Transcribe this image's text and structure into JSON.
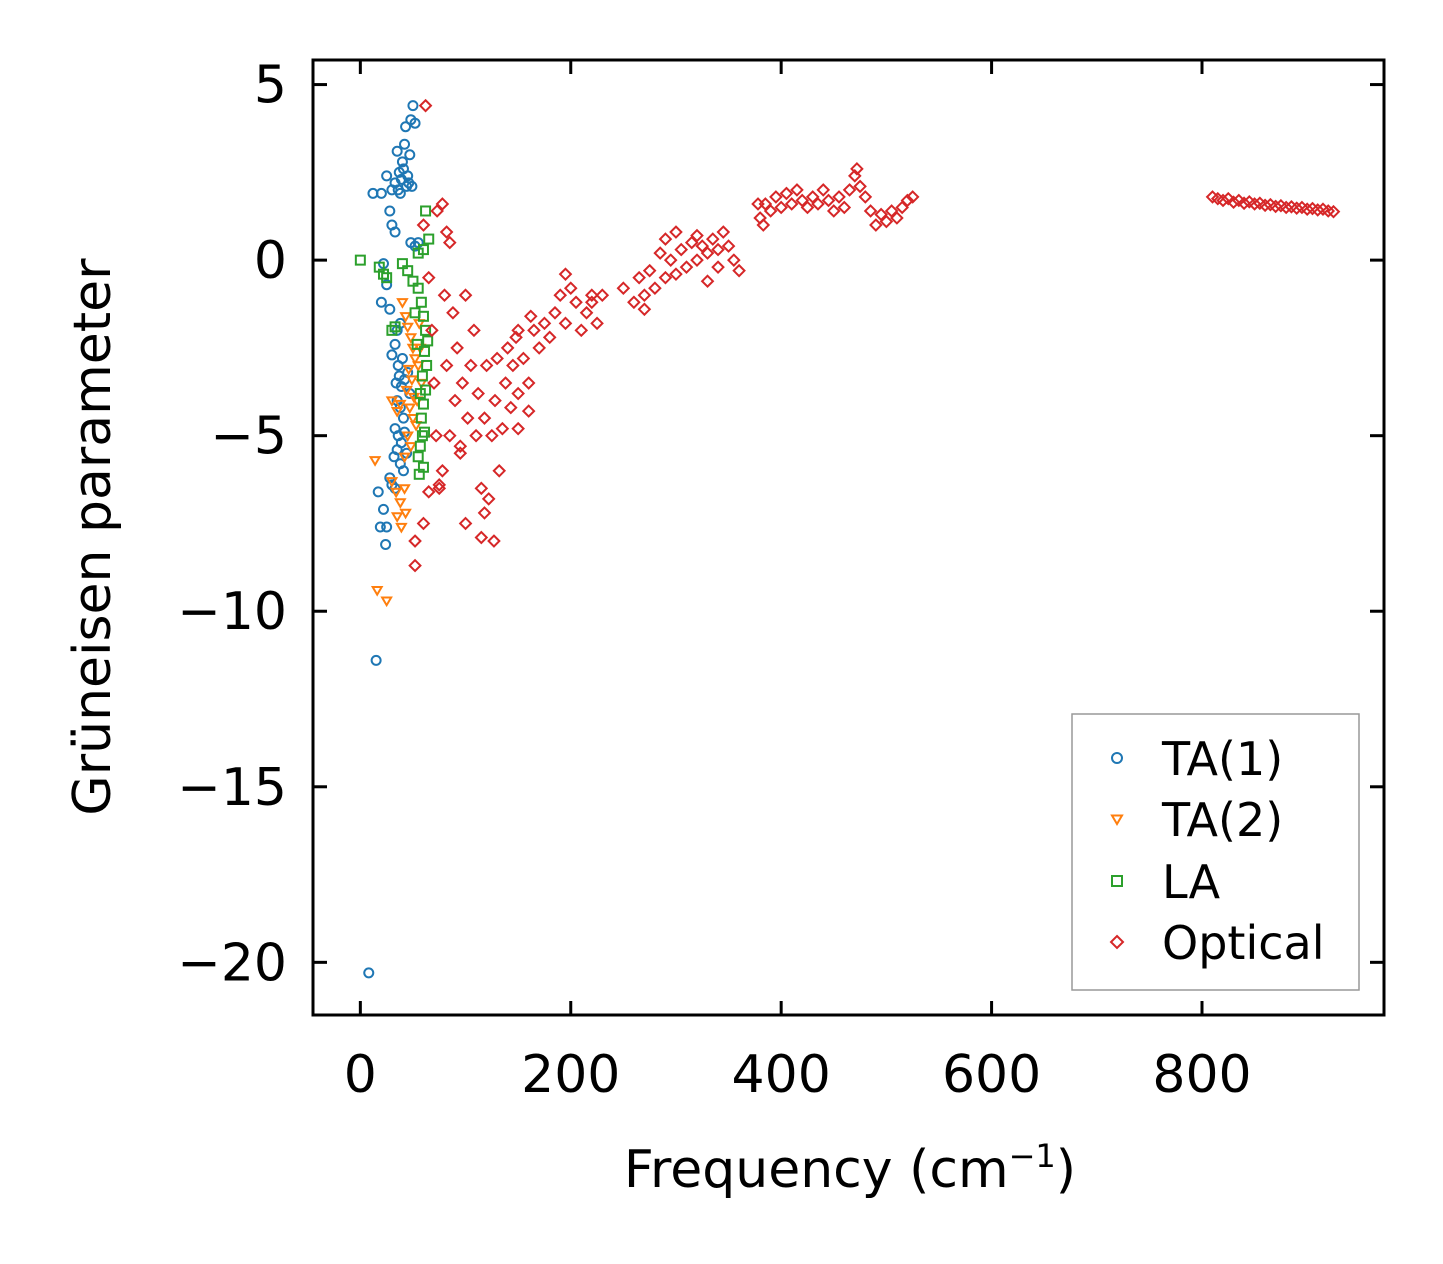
{
  "chart_data": {
    "type": "scatter",
    "xlabel": "Frequency (cm",
    "xlabel_sup": "−1",
    "xlabel_suffix": ")",
    "ylabel": "Grüneisen parameter",
    "xlim": [
      -45,
      973
    ],
    "ylim": [
      -21.5,
      5.7
    ],
    "xticks": [
      0,
      200,
      400,
      600,
      800
    ],
    "xtick_labels": [
      "0",
      "200",
      "400",
      "600",
      "800"
    ],
    "yticks": [
      5,
      0,
      -5,
      -10,
      -15,
      -20
    ],
    "ytick_labels": [
      "5",
      "0",
      "−5",
      "−10",
      "−15",
      "−20"
    ],
    "grid": false,
    "legend_position": "bottom-right",
    "series": [
      {
        "name": "TA(1)",
        "marker": "circle",
        "color": "#1f77b4",
        "points": [
          [
            12,
            1.9
          ],
          [
            20,
            1.9
          ],
          [
            25,
            2.4
          ],
          [
            28,
            1.4
          ],
          [
            30,
            2.0
          ],
          [
            33,
            2.2
          ],
          [
            35,
            3.1
          ],
          [
            37,
            2.5
          ],
          [
            38,
            1.9
          ],
          [
            40,
            2.8
          ],
          [
            42,
            3.3
          ],
          [
            43,
            3.8
          ],
          [
            44,
            2.1
          ],
          [
            46,
            2.2
          ],
          [
            47,
            3.0
          ],
          [
            48,
            4.0
          ],
          [
            50,
            4.4
          ],
          [
            52,
            3.9
          ],
          [
            45,
            2.4
          ],
          [
            41,
            2.6
          ],
          [
            36,
            2.0
          ],
          [
            39,
            2.3
          ],
          [
            49,
            2.1
          ],
          [
            30,
            1.0
          ],
          [
            33,
            0.8
          ],
          [
            48,
            0.5
          ],
          [
            52,
            0.4
          ],
          [
            55,
            0.5
          ],
          [
            22,
            -0.1
          ],
          [
            25,
            -0.7
          ],
          [
            20,
            -1.2
          ],
          [
            28,
            -1.4
          ],
          [
            35,
            -2.0
          ],
          [
            38,
            -1.8
          ],
          [
            33,
            -2.4
          ],
          [
            30,
            -2.7
          ],
          [
            36,
            -3.0
          ],
          [
            40,
            -2.8
          ],
          [
            34,
            -3.5
          ],
          [
            37,
            -3.3
          ],
          [
            39,
            -3.6
          ],
          [
            42,
            -3.4
          ],
          [
            45,
            -3.2
          ],
          [
            47,
            -3.8
          ],
          [
            35,
            -4.0
          ],
          [
            38,
            -4.2
          ],
          [
            41,
            -4.5
          ],
          [
            33,
            -4.8
          ],
          [
            36,
            -5.0
          ],
          [
            39,
            -5.2
          ],
          [
            42,
            -4.9
          ],
          [
            44,
            -5.5
          ],
          [
            32,
            -5.6
          ],
          [
            35,
            -5.4
          ],
          [
            38,
            -5.8
          ],
          [
            41,
            -6.0
          ],
          [
            30,
            -6.4
          ],
          [
            28,
            -6.2
          ],
          [
            33,
            -6.5
          ],
          [
            17,
            -6.6
          ],
          [
            22,
            -7.1
          ],
          [
            19,
            -7.6
          ],
          [
            25,
            -7.6
          ],
          [
            24,
            -8.1
          ],
          [
            15,
            -11.4
          ],
          [
            8,
            -20.3
          ]
        ]
      },
      {
        "name": "TA(2)",
        "marker": "triangle",
        "color": "#ff7f0e",
        "points": [
          [
            40,
            -1.2
          ],
          [
            43,
            -1.6
          ],
          [
            45,
            -1.9
          ],
          [
            48,
            -2.2
          ],
          [
            50,
            -2.5
          ],
          [
            52,
            -2.8
          ],
          [
            46,
            -3.1
          ],
          [
            49,
            -3.4
          ],
          [
            44,
            -3.7
          ],
          [
            51,
            -3.9
          ],
          [
            47,
            -4.2
          ],
          [
            50,
            -4.5
          ],
          [
            53,
            -4.7
          ],
          [
            45,
            -5.0
          ],
          [
            48,
            -5.3
          ],
          [
            42,
            -5.6
          ],
          [
            38,
            -4.1
          ],
          [
            35,
            -4.3
          ],
          [
            30,
            -4.0
          ],
          [
            55,
            -3.0
          ],
          [
            57,
            -2.5
          ],
          [
            56,
            -1.8
          ],
          [
            58,
            -3.5
          ],
          [
            54,
            -4.0
          ],
          [
            14,
            -5.7
          ],
          [
            30,
            -6.3
          ],
          [
            34,
            -6.6
          ],
          [
            38,
            -6.9
          ],
          [
            42,
            -6.5
          ],
          [
            35,
            -7.3
          ],
          [
            39,
            -7.6
          ],
          [
            43,
            -7.2
          ],
          [
            16,
            -9.4
          ],
          [
            25,
            -9.7
          ]
        ]
      },
      {
        "name": "LA",
        "marker": "square",
        "color": "#2ca02c",
        "points": [
          [
            0,
            0.0
          ],
          [
            18,
            -0.2
          ],
          [
            22,
            -0.4
          ],
          [
            25,
            -0.5
          ],
          [
            40,
            -0.1
          ],
          [
            45,
            -0.3
          ],
          [
            50,
            -0.6
          ],
          [
            55,
            -0.8
          ],
          [
            58,
            -1.2
          ],
          [
            60,
            -1.6
          ],
          [
            62,
            -2.0
          ],
          [
            64,
            -2.3
          ],
          [
            30,
            -2.0
          ],
          [
            33,
            -1.9
          ],
          [
            61,
            -2.6
          ],
          [
            63,
            -3.0
          ],
          [
            59,
            -3.3
          ],
          [
            62,
            -3.7
          ],
          [
            60,
            -4.1
          ],
          [
            58,
            -4.5
          ],
          [
            61,
            -4.9
          ],
          [
            57,
            -5.3
          ],
          [
            55,
            -5.6
          ],
          [
            60,
            -5.9
          ],
          [
            56,
            -6.1
          ],
          [
            62,
            1.4
          ],
          [
            65,
            0.6
          ],
          [
            60,
            0.3
          ],
          [
            55,
            0.2
          ],
          [
            52,
            -1.5
          ],
          [
            54,
            -2.4
          ],
          [
            57,
            -3.8
          ],
          [
            59,
            -5.0
          ]
        ]
      },
      {
        "name": "Optical",
        "marker": "diamond",
        "color": "#d62728",
        "points": [
          [
            62,
            4.4
          ],
          [
            472,
            2.6
          ],
          [
            60,
            1.0
          ],
          [
            65,
            -0.5
          ],
          [
            68,
            -2.0
          ],
          [
            70,
            -3.5
          ],
          [
            72,
            -5.0
          ],
          [
            75,
            -6.5
          ],
          [
            78,
            -6.0
          ],
          [
            80,
            -1.0
          ],
          [
            82,
            -3.0
          ],
          [
            85,
            0.5
          ],
          [
            88,
            -1.5
          ],
          [
            90,
            -4.0
          ],
          [
            92,
            -2.5
          ],
          [
            95,
            -5.5
          ],
          [
            97,
            -3.5
          ],
          [
            100,
            -1.0
          ],
          [
            102,
            -4.5
          ],
          [
            105,
            -3.0
          ],
          [
            108,
            -2.0
          ],
          [
            110,
            -5.0
          ],
          [
            112,
            -3.8
          ],
          [
            115,
            -6.5
          ],
          [
            118,
            -4.5
          ],
          [
            120,
            -3.0
          ],
          [
            122,
            -6.8
          ],
          [
            125,
            -5.0
          ],
          [
            128,
            -4.0
          ],
          [
            130,
            -2.8
          ],
          [
            132,
            -6.0
          ],
          [
            135,
            -4.8
          ],
          [
            138,
            -3.5
          ],
          [
            140,
            -2.5
          ],
          [
            143,
            -4.2
          ],
          [
            145,
            -3.0
          ],
          [
            148,
            -2.2
          ],
          [
            150,
            -3.8
          ],
          [
            155,
            -2.8
          ],
          [
            160,
            -3.5
          ],
          [
            165,
            -2.0
          ],
          [
            170,
            -2.5
          ],
          [
            175,
            -1.8
          ],
          [
            180,
            -2.2
          ],
          [
            185,
            -1.5
          ],
          [
            190,
            -1.0
          ],
          [
            195,
            -1.8
          ],
          [
            200,
            -0.8
          ],
          [
            205,
            -1.2
          ],
          [
            210,
            -2.0
          ],
          [
            215,
            -1.5
          ],
          [
            220,
            -1.2
          ],
          [
            225,
            -1.8
          ],
          [
            230,
            -1.0
          ],
          [
            78,
            1.6
          ],
          [
            73,
            1.4
          ],
          [
            82,
            0.8
          ],
          [
            60,
            -7.5
          ],
          [
            65,
            -6.6
          ],
          [
            75,
            -6.4
          ],
          [
            52,
            -8.0
          ],
          [
            52,
            -8.7
          ],
          [
            85,
            -5.0
          ],
          [
            95,
            -5.3
          ],
          [
            100,
            -7.5
          ],
          [
            115,
            -7.9
          ],
          [
            127,
            -8.0
          ],
          [
            118,
            -7.2
          ],
          [
            150,
            -4.8
          ],
          [
            160,
            -4.3
          ],
          [
            150,
            -2.0
          ],
          [
            162,
            -1.6
          ],
          [
            195,
            -0.4
          ],
          [
            220,
            -1.0
          ],
          [
            250,
            -0.8
          ],
          [
            260,
            -1.2
          ],
          [
            265,
            -0.5
          ],
          [
            270,
            -1.0
          ],
          [
            275,
            -0.3
          ],
          [
            280,
            -0.8
          ],
          [
            285,
            0.2
          ],
          [
            290,
            -0.5
          ],
          [
            295,
            0.0
          ],
          [
            300,
            -0.4
          ],
          [
            305,
            0.3
          ],
          [
            310,
            -0.2
          ],
          [
            315,
            0.5
          ],
          [
            320,
            0.0
          ],
          [
            325,
            0.4
          ],
          [
            330,
            0.2
          ],
          [
            335,
            0.6
          ],
          [
            340,
            0.3
          ],
          [
            345,
            0.8
          ],
          [
            350,
            0.4
          ],
          [
            355,
            0.0
          ],
          [
            360,
            -0.3
          ],
          [
            340,
            -0.2
          ],
          [
            330,
            -0.6
          ],
          [
            290,
            0.6
          ],
          [
            300,
            0.8
          ],
          [
            320,
            0.7
          ],
          [
            270,
            -1.4
          ],
          [
            380,
            1.2
          ],
          [
            385,
            1.6
          ],
          [
            390,
            1.4
          ],
          [
            395,
            1.8
          ],
          [
            400,
            1.5
          ],
          [
            405,
            1.9
          ],
          [
            410,
            1.6
          ],
          [
            415,
            2.0
          ],
          [
            420,
            1.7
          ],
          [
            425,
            1.5
          ],
          [
            430,
            1.8
          ],
          [
            435,
            1.6
          ],
          [
            440,
            2.0
          ],
          [
            445,
            1.7
          ],
          [
            450,
            1.4
          ],
          [
            455,
            1.8
          ],
          [
            460,
            1.5
          ],
          [
            465,
            2.0
          ],
          [
            470,
            2.4
          ],
          [
            475,
            2.1
          ],
          [
            480,
            1.8
          ],
          [
            485,
            1.4
          ],
          [
            490,
            1.0
          ],
          [
            495,
            1.3
          ],
          [
            500,
            1.1
          ],
          [
            505,
            1.4
          ],
          [
            510,
            1.2
          ],
          [
            515,
            1.5
          ],
          [
            520,
            1.7
          ],
          [
            525,
            1.8
          ],
          [
            378,
            1.6
          ],
          [
            383,
            1.0
          ],
          [
            810,
            1.8
          ],
          [
            815,
            1.75
          ],
          [
            820,
            1.7
          ],
          [
            825,
            1.75
          ],
          [
            830,
            1.65
          ],
          [
            835,
            1.7
          ],
          [
            840,
            1.62
          ],
          [
            845,
            1.66
          ],
          [
            850,
            1.6
          ],
          [
            855,
            1.62
          ],
          [
            860,
            1.56
          ],
          [
            865,
            1.58
          ],
          [
            870,
            1.53
          ],
          [
            875,
            1.55
          ],
          [
            880,
            1.5
          ],
          [
            885,
            1.52
          ],
          [
            890,
            1.48
          ],
          [
            895,
            1.5
          ],
          [
            900,
            1.45
          ],
          [
            905,
            1.47
          ],
          [
            910,
            1.43
          ],
          [
            915,
            1.45
          ],
          [
            920,
            1.4
          ],
          [
            925,
            1.38
          ]
        ]
      }
    ]
  }
}
